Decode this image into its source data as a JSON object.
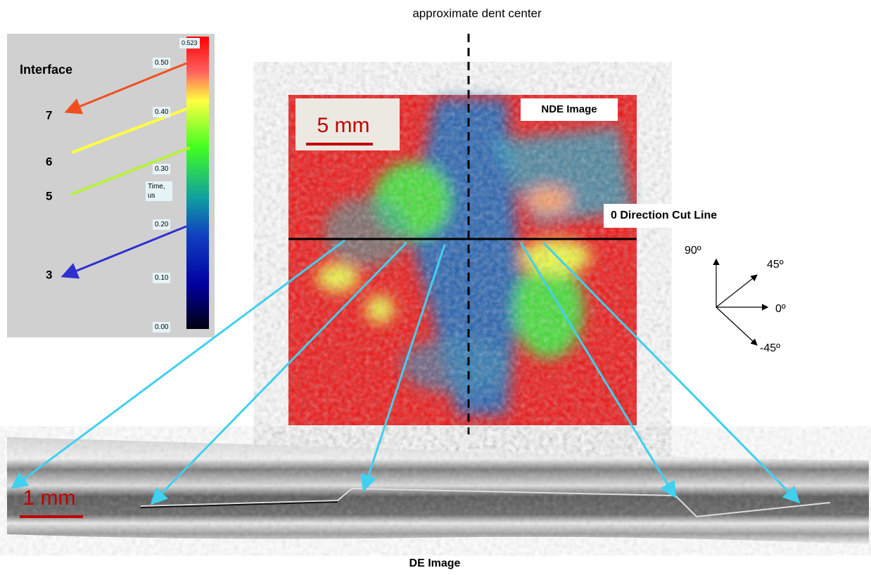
{
  "title": "approximate dent center",
  "legend": {
    "title": "Interface",
    "interfaces": [
      "7",
      "6",
      "5",
      "3"
    ],
    "scale_labels": [
      "0.523",
      "0.50",
      "0.40",
      "0.30",
      "0.20",
      "0.10",
      "0.00"
    ],
    "scale_title": "Time, us"
  },
  "nde": {
    "scale_bar": "5 mm",
    "label": "NDE Image",
    "cut_line": "0 Direction Cut Line"
  },
  "compass": {
    "labels": [
      "90º",
      "45º",
      "0º",
      "-45º"
    ]
  },
  "de": {
    "scale_bar": "1 mm",
    "label": "DE Image"
  }
}
